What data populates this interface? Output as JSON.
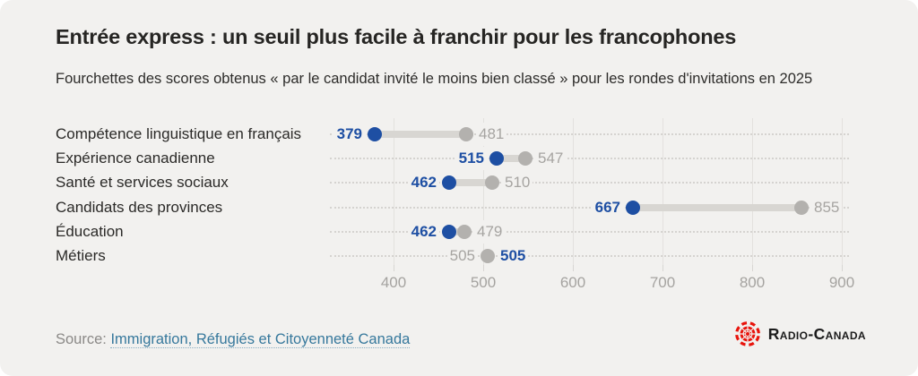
{
  "header": {
    "title": "Entrée express : un seuil plus facile à franchir pour les francophones",
    "subtitle": "Fourchettes des scores obtenus « par le candidat invité le moins bien classé » pour les rondes d'invitations en 2025"
  },
  "chart_data": {
    "type": "dumbbell",
    "title": "Entrée express : un seuil plus facile à franchir pour les francophones",
    "subtitle": "Fourchettes des scores obtenus « par le candidat invité le moins bien classé » pour les rondes d'invitations en 2025",
    "categories": [
      "Compétence linguistique en français",
      "Expérience canadienne",
      "Santé et services sociaux",
      "Candidats des provinces",
      "Éducation",
      "Métiers"
    ],
    "series": [
      {
        "name": "score-min",
        "color": "#1e4fa3",
        "values": [
          379,
          515,
          462,
          667,
          462,
          505
        ]
      },
      {
        "name": "score-max",
        "color": "#b3b1ae",
        "values": [
          481,
          547,
          510,
          855,
          479,
          505
        ]
      }
    ],
    "x_ticks": [
      400,
      500,
      600,
      700,
      800,
      900
    ],
    "xlim": [
      360,
      950
    ],
    "grid": "vertical",
    "legend": "none",
    "colors": {
      "min_dot": "#1e4fa3",
      "max_dot": "#b3b1ae",
      "bar": "#d8d6d2"
    }
  },
  "footer": {
    "source_label": "Source:",
    "source_link": "Immigration, Réfugiés et Citoyenneté Canada",
    "logo_text": "Radio-Canada",
    "logo_color": "#e8130b"
  }
}
